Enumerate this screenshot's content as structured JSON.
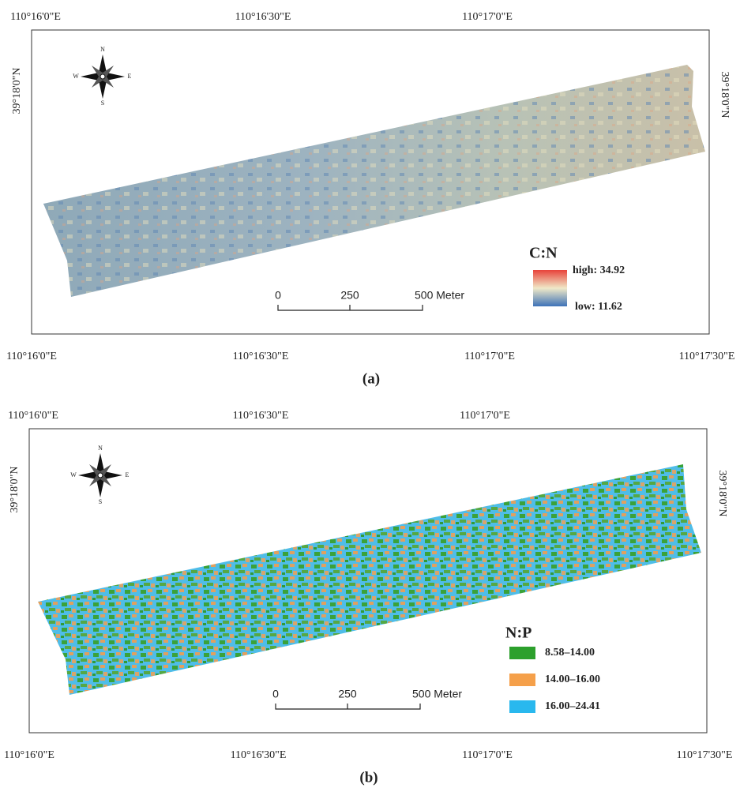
{
  "panels": [
    {
      "caption": "(a)",
      "top_lon_labels": [
        "110°16'0\"E",
        "110°16'30\"E",
        "110°17'0\"E"
      ],
      "bottom_lon_labels": [
        "110°16'0\"E",
        "110°16'30\"E",
        "110°17'0\"E",
        "110°17'30\"E"
      ],
      "lat_label": "39°18'0\"N",
      "compass": {
        "n": "N",
        "e": "E",
        "s": "S",
        "w": "W"
      },
      "legend": {
        "title": "C:N",
        "high": "high: 34.92",
        "low": "low: 11.62",
        "colors": [
          "#e8433a",
          "#f0e9c8",
          "#3d72b8"
        ]
      },
      "scale_bar": [
        "0",
        "250",
        "500 Meter"
      ]
    },
    {
      "caption": "(b)",
      "top_lon_labels": [
        "110°16'0\"E",
        "110°16'30\"E",
        "110°17'0\"E"
      ],
      "bottom_lon_labels": [
        "110°16'0\"E",
        "110°16'30\"E",
        "110°17'0\"E",
        "110°17'30\"E"
      ],
      "lat_label": "39°18'0\"N",
      "compass": {
        "n": "N",
        "e": "E",
        "s": "S",
        "w": "W"
      },
      "legend": {
        "title": "N:P",
        "entries": [
          {
            "label": "8.58–14.00",
            "color": "#2ca02c"
          },
          {
            "label": "14.00–16.00",
            "color": "#f5a04a"
          },
          {
            "label": "16.00–24.41",
            "color": "#29b8ee"
          }
        ]
      },
      "scale_bar": [
        "0",
        "250",
        "500 Meter"
      ]
    }
  ]
}
